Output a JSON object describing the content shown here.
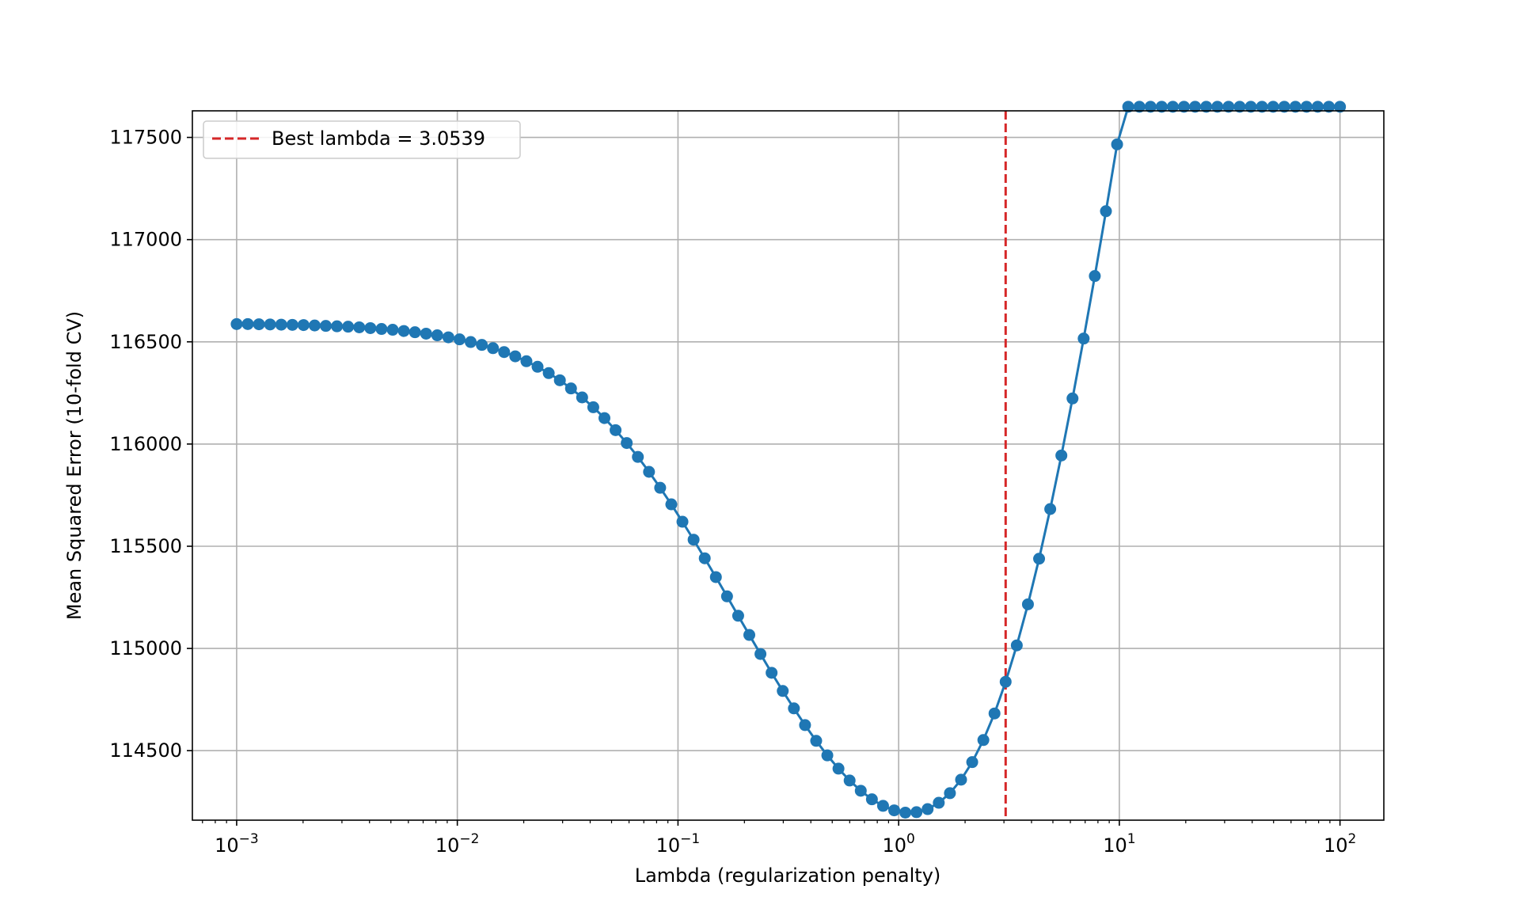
{
  "chart_data": {
    "type": "line",
    "title": "",
    "xlabel": "Lambda (regularization penalty)",
    "ylabel": "Mean Squared Error (10-fold CV)",
    "x_scale": "log",
    "xlim": [
      0.00063,
      158
    ],
    "ylim": [
      114160,
      117630
    ],
    "x_ticks": [
      {
        "value": 0.001,
        "base": "10",
        "exp": "−3"
      },
      {
        "value": 0.01,
        "base": "10",
        "exp": "−2"
      },
      {
        "value": 0.1,
        "base": "10",
        "exp": "−1"
      },
      {
        "value": 1,
        "base": "10",
        "exp": "0"
      },
      {
        "value": 10,
        "base": "10",
        "exp": "1"
      },
      {
        "value": 100,
        "base": "10",
        "exp": "2"
      }
    ],
    "y_ticks": [
      114500,
      115000,
      115500,
      116000,
      116500,
      117000,
      117500
    ],
    "grid": true,
    "legend_position": "top-left",
    "line_color": "#1f77b4",
    "vline_color": "#d62728",
    "series": [
      {
        "x_log10_range": [
          -3,
          2
        ],
        "n_points": 100,
        "values": [
          116587,
          116587,
          116586,
          116585,
          116584,
          116583,
          116582,
          116580,
          116578,
          116576,
          116574,
          116571,
          116567,
          116563,
          116559,
          116553,
          116547,
          116540,
          116532,
          116522,
          116512,
          116499,
          116485,
          116469,
          116450,
          116429,
          116405,
          116378,
          116347,
          116312,
          116272,
          116228,
          116180,
          116127,
          116068,
          116005,
          115937,
          115864,
          115786,
          115705,
          115620,
          115532,
          115441,
          115349,
          115255,
          115160,
          115066,
          114973,
          114881,
          114792,
          114707,
          114625,
          114548,
          114477,
          114412,
          114354,
          114304,
          114262,
          114230,
          114208,
          114197,
          114199,
          114214,
          114245,
          114292,
          114358,
          114444,
          114552,
          114682,
          114837,
          115015,
          115216,
          115439,
          115682,
          115944,
          116223,
          116516,
          116822,
          117139,
          117466,
          117650,
          117650,
          117650,
          117650,
          117650,
          117650,
          117650,
          117650,
          117650,
          117650,
          117650,
          117650,
          117650,
          117650,
          117650,
          117650,
          117650,
          117650,
          117650,
          117650
        ]
      }
    ],
    "best_lambda": 3.0539,
    "legend_label": "Best lambda = 3.0539"
  }
}
